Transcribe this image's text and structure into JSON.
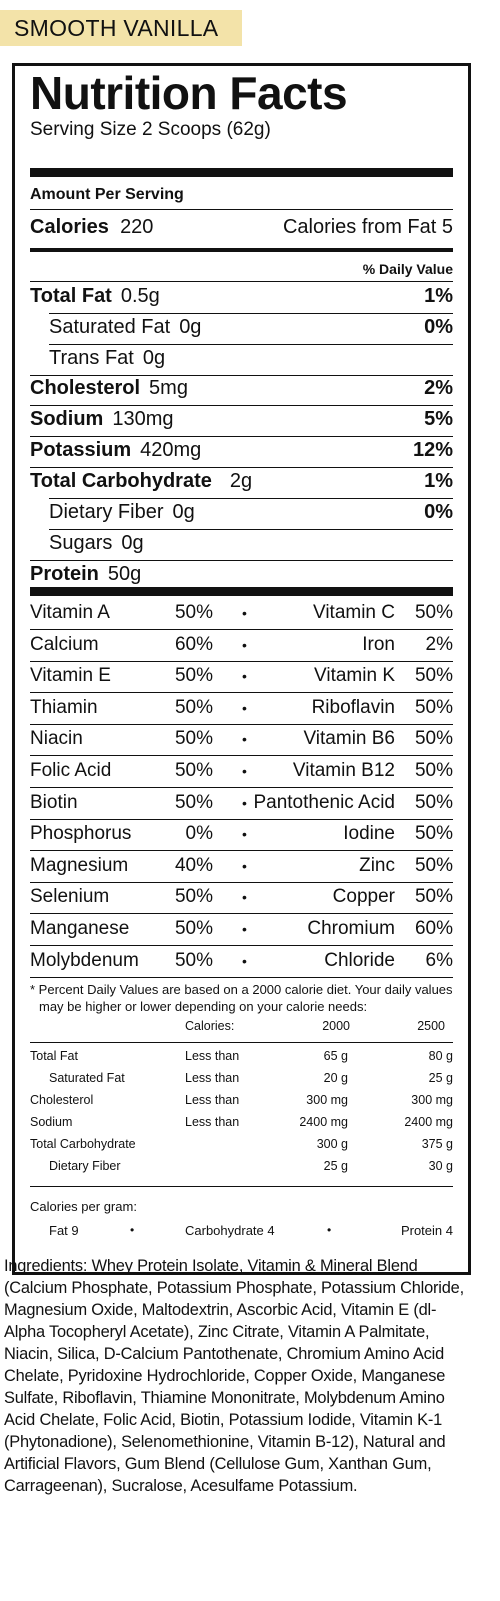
{
  "flavor": "SMOOTH VANILLA",
  "label": {
    "title": "Nutrition Facts",
    "serving_size": "Serving Size 2 Scoops (62g)",
    "amount_per_serving": "Amount Per Serving",
    "calories_label": "Calories",
    "calories_value": "220",
    "calories_from_fat": "Calories from Fat   5",
    "daily_value_header": "% Daily Value",
    "nutrients": [
      {
        "name": "Total Fat",
        "amount": "0.5g",
        "dv": "1%"
      },
      {
        "name": "Saturated Fat",
        "amount": "0g",
        "dv": "0%"
      },
      {
        "name": "Trans Fat",
        "amount": "0g",
        "dv": ""
      },
      {
        "name": "Cholesterol",
        "amount": "5mg",
        "dv": "2%"
      },
      {
        "name": "Sodium",
        "amount": "130mg",
        "dv": "5%"
      },
      {
        "name": "Potassium",
        "amount": "420mg",
        "dv": "12%"
      },
      {
        "name": "Total Carbohydrate",
        "amount": "2g",
        "dv": "1%"
      },
      {
        "name": "Dietary Fiber",
        "amount": "0g",
        "dv": "0%"
      },
      {
        "name": "Sugars",
        "amount": "0g",
        "dv": ""
      },
      {
        "name": "Protein",
        "amount": "50g",
        "dv": ""
      }
    ],
    "vitamins": [
      {
        "left": "Vitamin A",
        "left_pct": "50%",
        "right": "Vitamin C",
        "right_pct": "50%"
      },
      {
        "left": "Calcium",
        "left_pct": "60%",
        "right": "Iron",
        "right_pct": "2%"
      },
      {
        "left": "Vitamin E",
        "left_pct": "50%",
        "right": "Vitamin K",
        "right_pct": "50%"
      },
      {
        "left": "Thiamin",
        "left_pct": "50%",
        "right": "Riboflavin",
        "right_pct": "50%"
      },
      {
        "left": "Niacin",
        "left_pct": "50%",
        "right": "Vitamin B6",
        "right_pct": "50%"
      },
      {
        "left": "Folic Acid",
        "left_pct": "50%",
        "right": "Vitamin B12",
        "right_pct": "50%"
      },
      {
        "left": "Biotin",
        "left_pct": "50%",
        "right": "Pantothenic Acid",
        "right_pct": "50%"
      },
      {
        "left": "Phosphorus",
        "left_pct": "0%",
        "right": "Iodine",
        "right_pct": "50%"
      },
      {
        "left": "Magnesium",
        "left_pct": "40%",
        "right": "Zinc",
        "right_pct": "50%"
      },
      {
        "left": "Selenium",
        "left_pct": "50%",
        "right": "Copper",
        "right_pct": "50%"
      },
      {
        "left": "Manganese",
        "left_pct": "50%",
        "right": "Chromium",
        "right_pct": "60%"
      },
      {
        "left": "Molybdenum",
        "left_pct": "50%",
        "right": "Chloride",
        "right_pct": "6%"
      }
    ],
    "bullet": "•",
    "footnote_line1": "* Percent Daily Values are based on a 2000 calorie diet. Your daily values",
    "footnote_line2": "may be higher or lower depending on your calorie needs:",
    "footnote_header": {
      "col2": "Calories:",
      "col3": "2000",
      "col4": "2500"
    },
    "footnote_rows": [
      {
        "name": "Total Fat",
        "limit": "Less than",
        "v2000": "65 g",
        "v2500": "80 g"
      },
      {
        "name": "Saturated Fat",
        "limit": "Less than",
        "v2000": "20 g",
        "v2500": "25 g"
      },
      {
        "name": "Cholesterol",
        "limit": "Less than",
        "v2000": "300 mg",
        "v2500": "300 mg"
      },
      {
        "name": "Sodium",
        "limit": "Less than",
        "v2000": "2400 mg",
        "v2500": "2400 mg"
      },
      {
        "name": "Total Carbohydrate",
        "limit": "",
        "v2000": "300 g",
        "v2500": "375 g"
      },
      {
        "name": "Dietary Fiber",
        "limit": "",
        "v2000": "25 g",
        "v2500": "30 g"
      }
    ],
    "calories_per_gram": "Calories per gram:",
    "cpg": {
      "fat": "Fat  9",
      "carb": "Carbohydrate  4",
      "protein": "Protein  4"
    }
  },
  "ingredients": {
    "label": "Ingredients:",
    "text": " Whey Protein Isolate, Vitamin & Mineral Blend (Calcium Phosphate, Potassium Phosphate, Potassium Chloride, Magnesium Oxide, Maltodextrin, Ascorbic Acid, Vitamin E (dl-Alpha Tocopheryl Acetate), Zinc Citrate, Vitamin A Palmitate, Niacin, Silica, D-Calcium Pantothenate, Chromium Amino Acid Chelate, Pyridoxine Hydrochloride, Copper Oxide, Manganese Sulfate, Riboflavin, Thiamine Mononitrate, Molybdenum Amino Acid Chelate, Folic Acid, Biotin, Potassium Iodide, Vitamin K-1 (Phytonadione), Selenomethionine, Vitamin B-12), Natural and Artificial Flavors, Gum Blend (Cellulose Gum, Xanthan Gum, Carrageenan), Sucralose, Acesulfame Potassium."
  }
}
